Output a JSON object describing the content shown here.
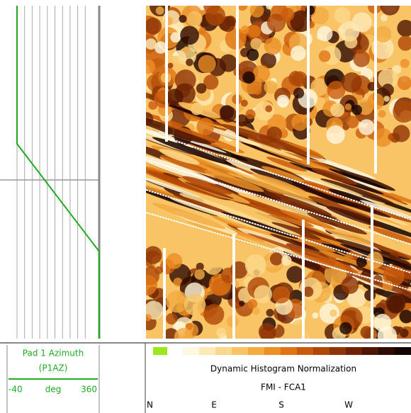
{
  "track_legend": {
    "title": "Pad 1 Azimuth",
    "mnemonic": "(P1AZ)",
    "left_value": "-40",
    "unit": "deg",
    "right_value": "360",
    "color": "#22aa22"
  },
  "image_legend": {
    "normalization": "Dynamic Histogram Normalization",
    "tool": "FMI - FCA1",
    "color_scale": [
      "#fff8e0",
      "#fdeab8",
      "#fbd98c",
      "#f8c466",
      "#f3ab42",
      "#ec8f26",
      "#df7414",
      "#c95c0c",
      "#ae4708",
      "#8e3406",
      "#6e2404",
      "#4e1603",
      "#2e0a02",
      "#140402"
    ],
    "directions": [
      "N",
      "E",
      "S",
      "W"
    ]
  }
}
